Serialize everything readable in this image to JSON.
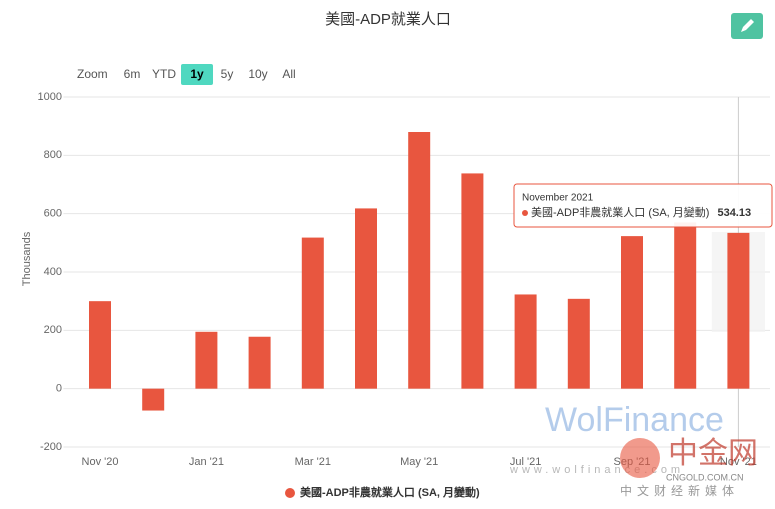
{
  "chart_data": {
    "type": "bar",
    "title": "美國-ADP就業人口",
    "y_label": "Thousands",
    "categories": [
      "Nov '20",
      null,
      "Jan '21",
      null,
      "Mar '21",
      null,
      "May '21",
      null,
      "Jul '21",
      null,
      "Sep '21",
      null,
      "Nov '21"
    ],
    "series": [
      {
        "name": "美國-ADP非農就業人口 (SA, 月變動)",
        "color": "#e8563f",
        "values": [
          300,
          -75,
          195,
          178,
          518,
          618,
          880,
          738,
          323,
          308,
          523,
          570,
          534.13
        ]
      }
    ],
    "ylim": [
      -200,
      1000
    ],
    "yticks": [
      -200,
      0,
      200,
      400,
      600,
      800,
      1000
    ],
    "grid": true,
    "legend": "bottom"
  },
  "range_selector": {
    "label": "Zoom",
    "buttons": [
      "6m",
      "YTD",
      "1y",
      "5y",
      "10y",
      "All"
    ],
    "selected": 2
  },
  "tooltip": {
    "title": "November 2021"
  },
  "watermark": {
    "brand": "WolFinance",
    "url": "www.wolfinance.com",
    "cn_brand": "中金网",
    "cn_url": "CNGOLD.COM.CN",
    "cn_tagline": "中文财经新媒体"
  }
}
